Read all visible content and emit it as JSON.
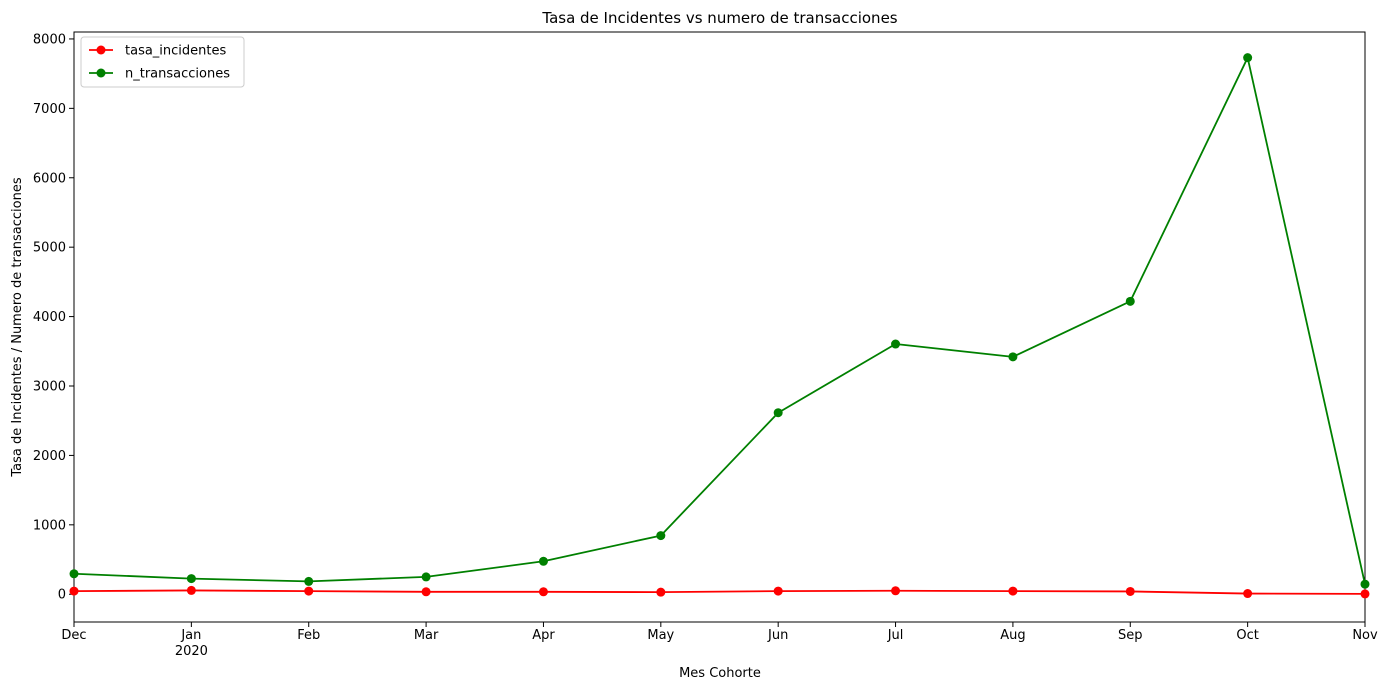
{
  "chart_data": {
    "type": "line",
    "title": "Tasa de Incidentes vs numero de transacciones",
    "xlabel": "Mes Cohorte",
    "ylabel": "Tasa de Incidentes / Numero de transacciones",
    "categories": [
      "Dec",
      "Jan",
      "Feb",
      "Mar",
      "Apr",
      "May",
      "Jun",
      "Jul",
      "Aug",
      "Sep",
      "Oct",
      "Nov"
    ],
    "category_sublabels": [
      "",
      "2020",
      "",
      "",
      "",
      "",
      "",
      "",
      "",
      "",
      "",
      ""
    ],
    "ylim": [
      -400,
      8100
    ],
    "yticks": [
      0,
      1000,
      2000,
      3000,
      4000,
      5000,
      6000,
      7000,
      8000
    ],
    "grid": false,
    "legend": "top-left",
    "series": [
      {
        "name": "tasa_incidentes",
        "color": "#ff0000",
        "marker": "circle",
        "values": [
          45,
          55,
          45,
          35,
          35,
          30,
          45,
          50,
          45,
          40,
          10,
          5
        ]
      },
      {
        "name": "n_transacciones",
        "color": "#008000",
        "marker": "circle",
        "values": [
          295,
          225,
          185,
          250,
          475,
          845,
          2615,
          3605,
          3420,
          4220,
          7730,
          145
        ]
      }
    ]
  }
}
